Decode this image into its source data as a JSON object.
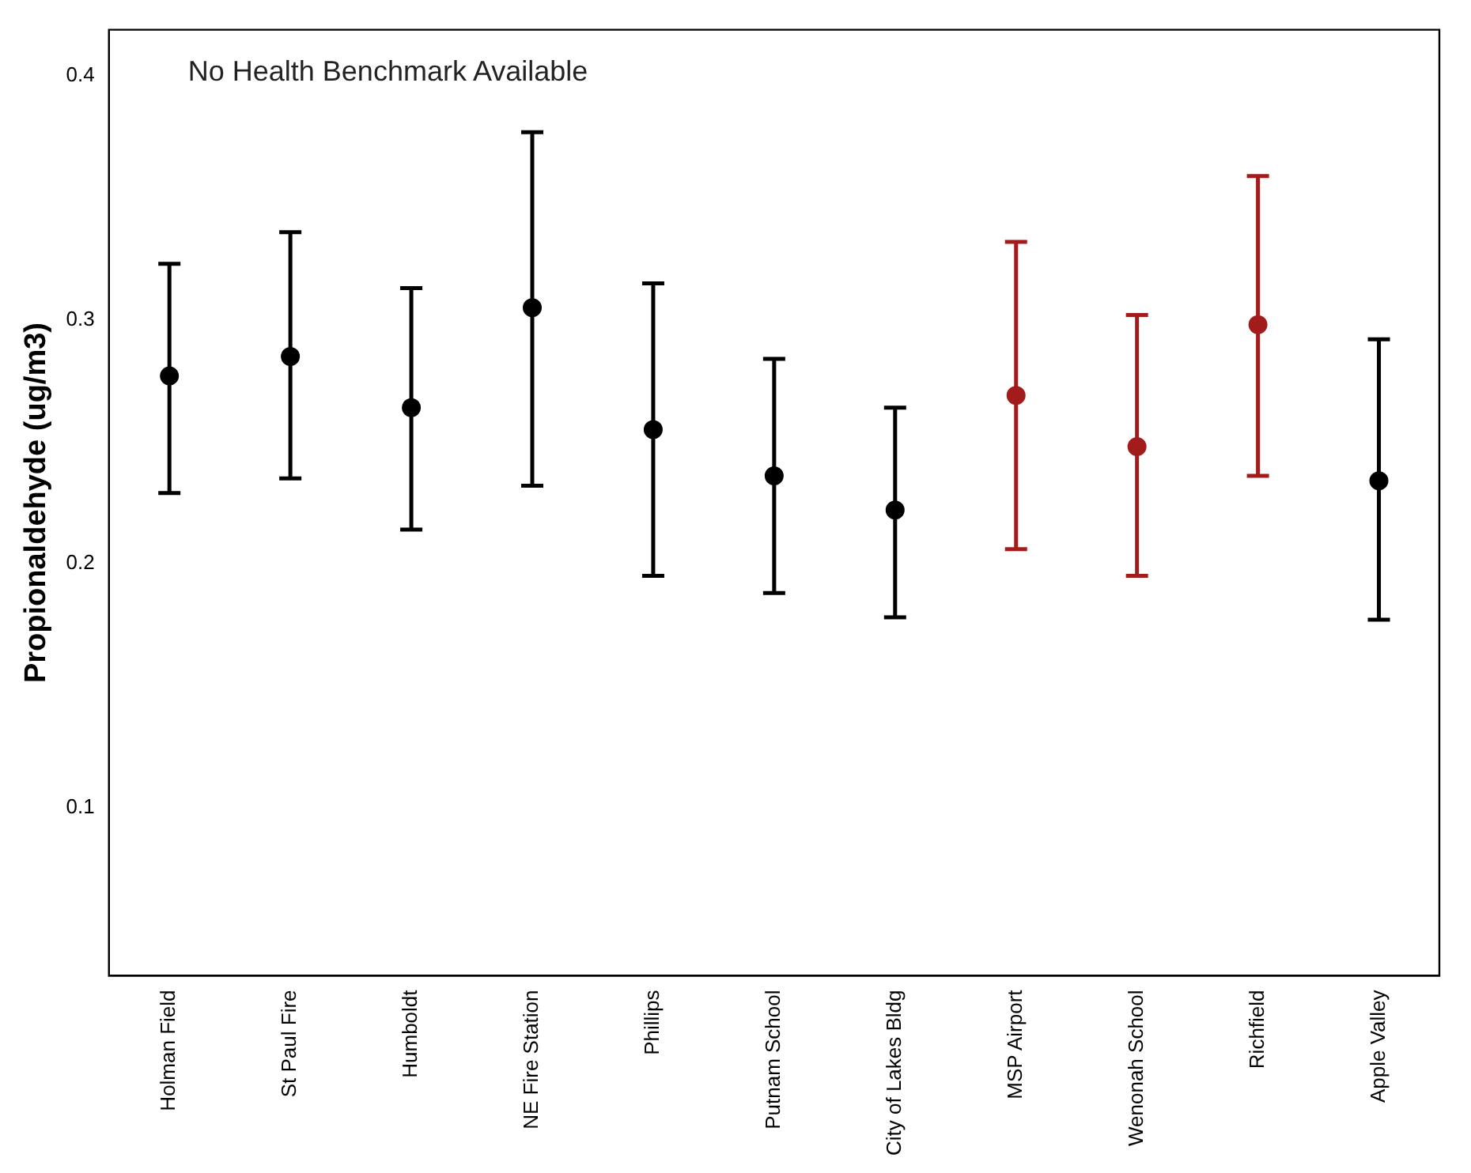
{
  "chart_data": {
    "type": "scatter",
    "ylabel": "Propionaldehyde (ug/m3)",
    "annotations": [
      "No Health Benchmark Available"
    ],
    "categories": [
      "Holman Field",
      "St Paul Fire",
      "Humboldt",
      "NE Fire Station",
      "Phillips",
      "Putnam School",
      "City of Lakes Bldg",
      "MSP Airport",
      "Wenonah School",
      "Richfield",
      "Apple Valley"
    ],
    "values": [
      0.277,
      0.285,
      0.264,
      0.305,
      0.255,
      0.236,
      0.222,
      0.269,
      0.248,
      0.298,
      0.234
    ],
    "errors": [
      [
        0.229,
        0.323
      ],
      [
        0.235,
        0.336
      ],
      [
        0.214,
        0.313
      ],
      [
        0.232,
        0.377
      ],
      [
        0.195,
        0.315
      ],
      [
        0.188,
        0.284
      ],
      [
        0.178,
        0.264
      ],
      [
        0.206,
        0.332
      ],
      [
        0.195,
        0.302
      ],
      [
        0.236,
        0.359
      ],
      [
        0.177,
        0.292
      ]
    ],
    "colors": [
      "#000000",
      "#000000",
      "#000000",
      "#000000",
      "#000000",
      "#000000",
      "#000000",
      "#a31c1c",
      "#a31c1c",
      "#a31c1c",
      "#000000"
    ],
    "ylim": [
      0.031,
      0.419
    ],
    "yticks": [
      0.1,
      0.2,
      0.3,
      0.4
    ],
    "grid": false,
    "legend": false,
    "marker": "circle"
  }
}
